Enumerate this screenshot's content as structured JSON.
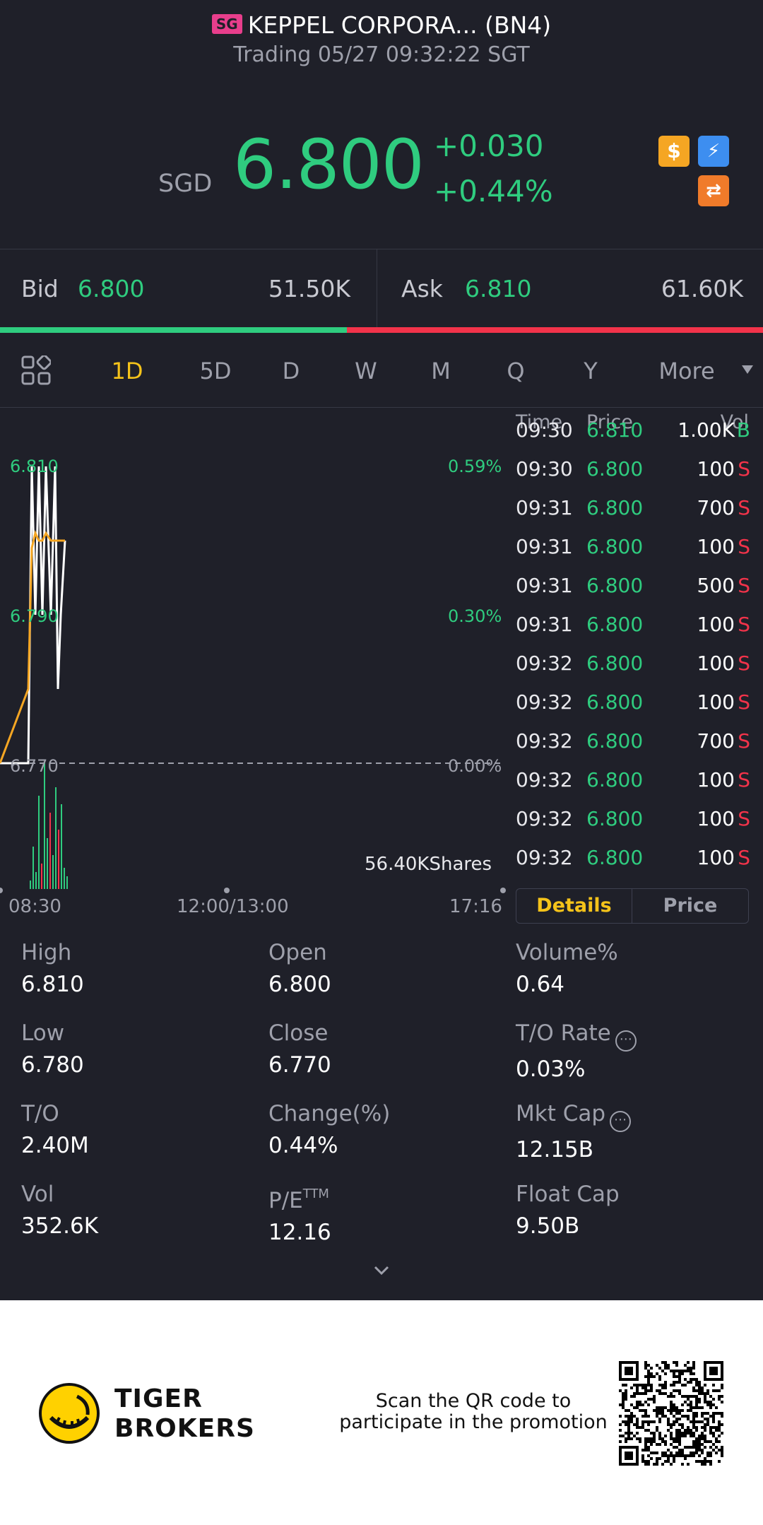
{
  "header": {
    "market_badge": "SG",
    "title": "KEPPEL CORPORA... (BN4)",
    "status": "Trading 05/27 09:32:22 SGT",
    "currency": "SGD",
    "price": "6.800",
    "change": "+0.030",
    "change_pct": "+0.44%",
    "icons": [
      "dollar-icon",
      "lightning-icon",
      "exchange-icon"
    ],
    "colors": {
      "up": "#2fcc7f",
      "down": "#f2334a",
      "accent": "#f5c31a"
    }
  },
  "bidask": {
    "bid_label": "Bid",
    "bid_price": "6.800",
    "bid_vol": "51.50K",
    "ask_label": "Ask",
    "ask_price": "6.810",
    "ask_vol": "61.60K",
    "bid_ratio": 0.455
  },
  "tabs": {
    "items": [
      "1D",
      "5D",
      "D",
      "W",
      "M",
      "Q",
      "Y"
    ],
    "more": "More",
    "active": "1D"
  },
  "chart": {
    "y_labels": [
      "6.810",
      "6.790",
      "6.770"
    ],
    "pct_labels": [
      "0.59%",
      "0.30%",
      "0.00%"
    ],
    "volume_label": "56.40KShares",
    "x_labels": [
      "08:30",
      "12:00/13:00",
      "17:16"
    ]
  },
  "chart_data": {
    "type": "line",
    "title": "",
    "xlabel": "",
    "ylabel": "",
    "ylim": [
      6.77,
      6.81
    ],
    "x_ticks": [
      "08:30",
      "12:00/13:00",
      "17:16"
    ],
    "series": [
      {
        "values": [
          6.77,
          6.77,
          6.81,
          6.79,
          6.81,
          6.79,
          6.81,
          6.79,
          6.81,
          6.78,
          6.79,
          6.8
        ]
      },
      {
        "values": [
          6.77,
          6.78,
          6.799,
          6.801,
          6.8,
          6.8,
          6.801,
          6.8,
          6.8,
          6.8,
          6.8,
          6.8
        ]
      }
    ],
    "volume": [
      2,
      10,
      4,
      22,
      6,
      30,
      12,
      18,
      8,
      24,
      14,
      20,
      5,
      3
    ],
    "volume_colors": [
      "green",
      "green",
      "green",
      "green",
      "red",
      "green",
      "green",
      "red",
      "green",
      "green",
      "red",
      "green",
      "green",
      "green"
    ]
  },
  "ticks": {
    "headers": {
      "time": "Time",
      "price": "Price",
      "vol": "Vol"
    },
    "rows": [
      {
        "time": "09:30",
        "price": "6.810",
        "vol": "1.00K",
        "side": "B"
      },
      {
        "time": "09:30",
        "price": "6.800",
        "vol": "100",
        "side": "S"
      },
      {
        "time": "09:31",
        "price": "6.800",
        "vol": "700",
        "side": "S"
      },
      {
        "time": "09:31",
        "price": "6.800",
        "vol": "100",
        "side": "S"
      },
      {
        "time": "09:31",
        "price": "6.800",
        "vol": "500",
        "side": "S"
      },
      {
        "time": "09:31",
        "price": "6.800",
        "vol": "100",
        "side": "S"
      },
      {
        "time": "09:32",
        "price": "6.800",
        "vol": "100",
        "side": "S"
      },
      {
        "time": "09:32",
        "price": "6.800",
        "vol": "100",
        "side": "S"
      },
      {
        "time": "09:32",
        "price": "6.800",
        "vol": "700",
        "side": "S"
      },
      {
        "time": "09:32",
        "price": "6.800",
        "vol": "100",
        "side": "S"
      },
      {
        "time": "09:32",
        "price": "6.800",
        "vol": "100",
        "side": "S"
      },
      {
        "time": "09:32",
        "price": "6.800",
        "vol": "100",
        "side": "S"
      }
    ],
    "tab_details": "Details",
    "tab_price": "Price"
  },
  "stats": {
    "high": {
      "label": "High",
      "value": "6.810"
    },
    "open": {
      "label": "Open",
      "value": "6.800"
    },
    "volume_pct": {
      "label": "Volume%",
      "value": "0.64"
    },
    "low": {
      "label": "Low",
      "value": "6.780"
    },
    "close": {
      "label": "Close",
      "value": "6.770"
    },
    "to_rate": {
      "label": "T/O Rate",
      "value": "0.03%"
    },
    "to": {
      "label": "T/O",
      "value": "2.40M"
    },
    "change_pct": {
      "label": "Change(%)",
      "value": "0.44%"
    },
    "mkt_cap": {
      "label": "Mkt Cap",
      "value": "12.15B"
    },
    "vol": {
      "label": "Vol",
      "value": "352.6K"
    },
    "pe": {
      "label": "P/E",
      "label_sup": "TTM",
      "value": "12.16"
    },
    "float_cap": {
      "label": "Float Cap",
      "value": "9.50B"
    }
  },
  "footer": {
    "brand_line1": "TIGER",
    "brand_line2": "BROKERS",
    "promo_line1": "Scan the QR code to",
    "promo_line2": "participate in the promotion"
  }
}
